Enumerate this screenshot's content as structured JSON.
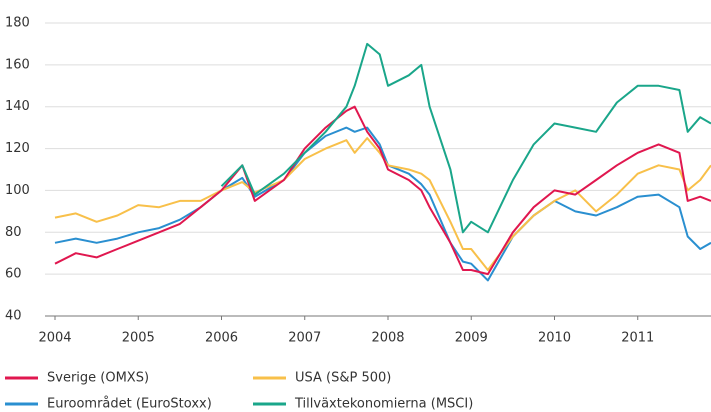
{
  "chart_data": {
    "type": "line",
    "x": [
      2004,
      2004.25,
      2004.5,
      2004.75,
      2005,
      2005.25,
      2005.5,
      2005.75,
      2006,
      2006.25,
      2006.4,
      2006.75,
      2007,
      2007.25,
      2007.5,
      2007.6,
      2007.75,
      2007.9,
      2008,
      2008.25,
      2008.4,
      2008.5,
      2008.75,
      2008.9,
      2009,
      2009.2,
      2009.5,
      2009.75,
      2010,
      2010.25,
      2010.5,
      2010.75,
      2011,
      2011.25,
      2011.5,
      2011.6,
      2011.75,
      2011.88
    ],
    "series": [
      {
        "name": "Sverige (OMXS)",
        "color": "#e0174f",
        "values": [
          65,
          70,
          68,
          72,
          76,
          80,
          84,
          92,
          100,
          112,
          95,
          105,
          120,
          130,
          138,
          140,
          128,
          120,
          110,
          105,
          100,
          92,
          75,
          62,
          62,
          60,
          80,
          92,
          100,
          98,
          105,
          112,
          118,
          122,
          118,
          95,
          97,
          95
        ]
      },
      {
        "name": "USA (S&P 500)",
        "color": "#f8c04a",
        "values": [
          87,
          89,
          85,
          88,
          93,
          92,
          95,
          95,
          100,
          104,
          99,
          105,
          115,
          120,
          124,
          118,
          125,
          118,
          112,
          110,
          108,
          105,
          85,
          72,
          72,
          62,
          78,
          88,
          95,
          100,
          90,
          98,
          108,
          112,
          110,
          100,
          105,
          112
        ]
      },
      {
        "name": "Euroområdet (EuroStoxx)",
        "color": "#2a8fd0",
        "values": [
          75,
          77,
          75,
          77,
          80,
          82,
          86,
          92,
          100,
          106,
          97,
          105,
          118,
          126,
          130,
          128,
          130,
          122,
          112,
          108,
          103,
          98,
          75,
          66,
          65,
          57,
          78,
          88,
          95,
          90,
          88,
          92,
          97,
          98,
          92,
          78,
          72,
          75
        ]
      },
      {
        "name": "Tillväxtekonomierna (MSCI)",
        "color": "#1aa68a",
        "values": [
          null,
          null,
          null,
          null,
          null,
          null,
          null,
          null,
          102,
          112,
          98,
          108,
          118,
          128,
          140,
          150,
          170,
          165,
          150,
          155,
          160,
          140,
          110,
          80,
          85,
          80,
          105,
          122,
          132,
          130,
          128,
          142,
          150,
          150,
          148,
          128,
          135,
          132
        ]
      }
    ],
    "xlim": [
      2004,
      2011.88
    ],
    "xticks": [
      2004,
      2005,
      2006,
      2007,
      2008,
      2009,
      2010,
      2011
    ],
    "ylim": [
      40,
      180
    ],
    "yticks": [
      40,
      60,
      80,
      100,
      120,
      140,
      160,
      180
    ],
    "grid": true
  }
}
